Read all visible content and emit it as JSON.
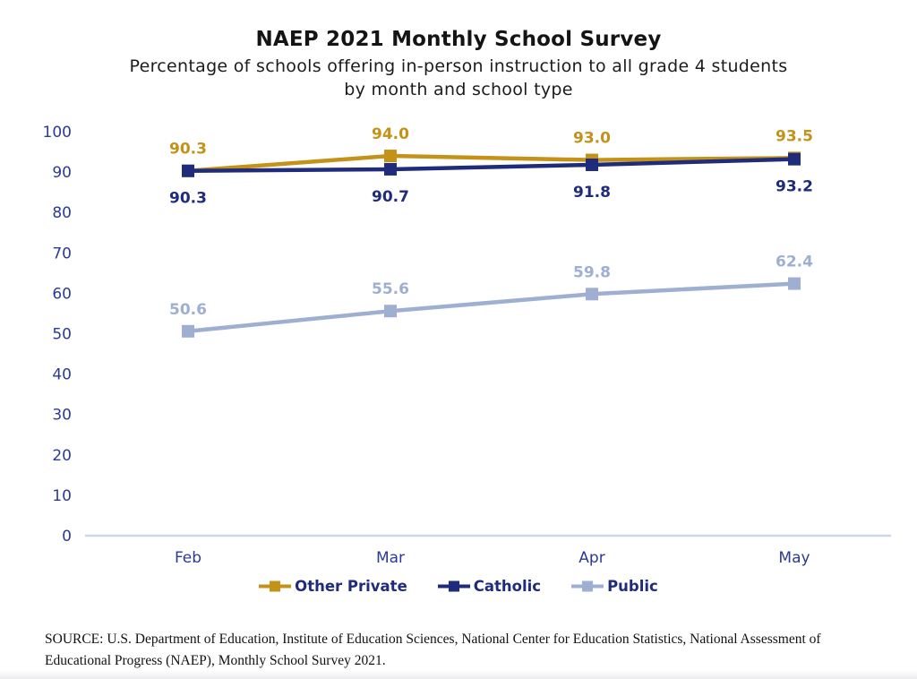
{
  "title": "NAEP 2021 Monthly School Survey",
  "subtitle_line1": "Percentage of schools offering in-person instruction to all grade 4 students",
  "subtitle_line2": "by month and school type",
  "source_text": "SOURCE: U.S. Department of Education, Institute of Education Sciences, National Center for Education Statistics, National Assessment of Educational Progress (NAEP), Monthly School Survey 2021.",
  "colors": {
    "other_private": "#C49218",
    "catholic": "#1F2C7B",
    "public": "#9FAFD2",
    "tick_label": "#2B3A94",
    "axis_line": "#C9D6EC",
    "legend_text": "#1F2C7B"
  },
  "chart_data": {
    "type": "line",
    "title": "NAEP 2021 Monthly School Survey",
    "subtitle": "Percentage of schools offering in-person instruction to all grade 4 students by month and school type",
    "categories": [
      "Feb",
      "Mar",
      "Apr",
      "May"
    ],
    "series": [
      {
        "name": "Other Private",
        "values": [
          90.3,
          94.0,
          93.0,
          93.5
        ],
        "color": "#C49218",
        "label_position": "above"
      },
      {
        "name": "Catholic",
        "values": [
          90.3,
          90.7,
          91.8,
          93.2
        ],
        "color": "#1F2C7B",
        "label_position": "below"
      },
      {
        "name": "Public",
        "values": [
          50.6,
          55.6,
          59.8,
          62.4
        ],
        "color": "#9FAFD2",
        "label_position": "above"
      }
    ],
    "ylim": [
      0,
      100
    ],
    "yticks": [
      0,
      10,
      20,
      30,
      40,
      50,
      60,
      70,
      80,
      90,
      100
    ],
    "marker": "square",
    "grid": false,
    "legend_position": "bottom"
  }
}
